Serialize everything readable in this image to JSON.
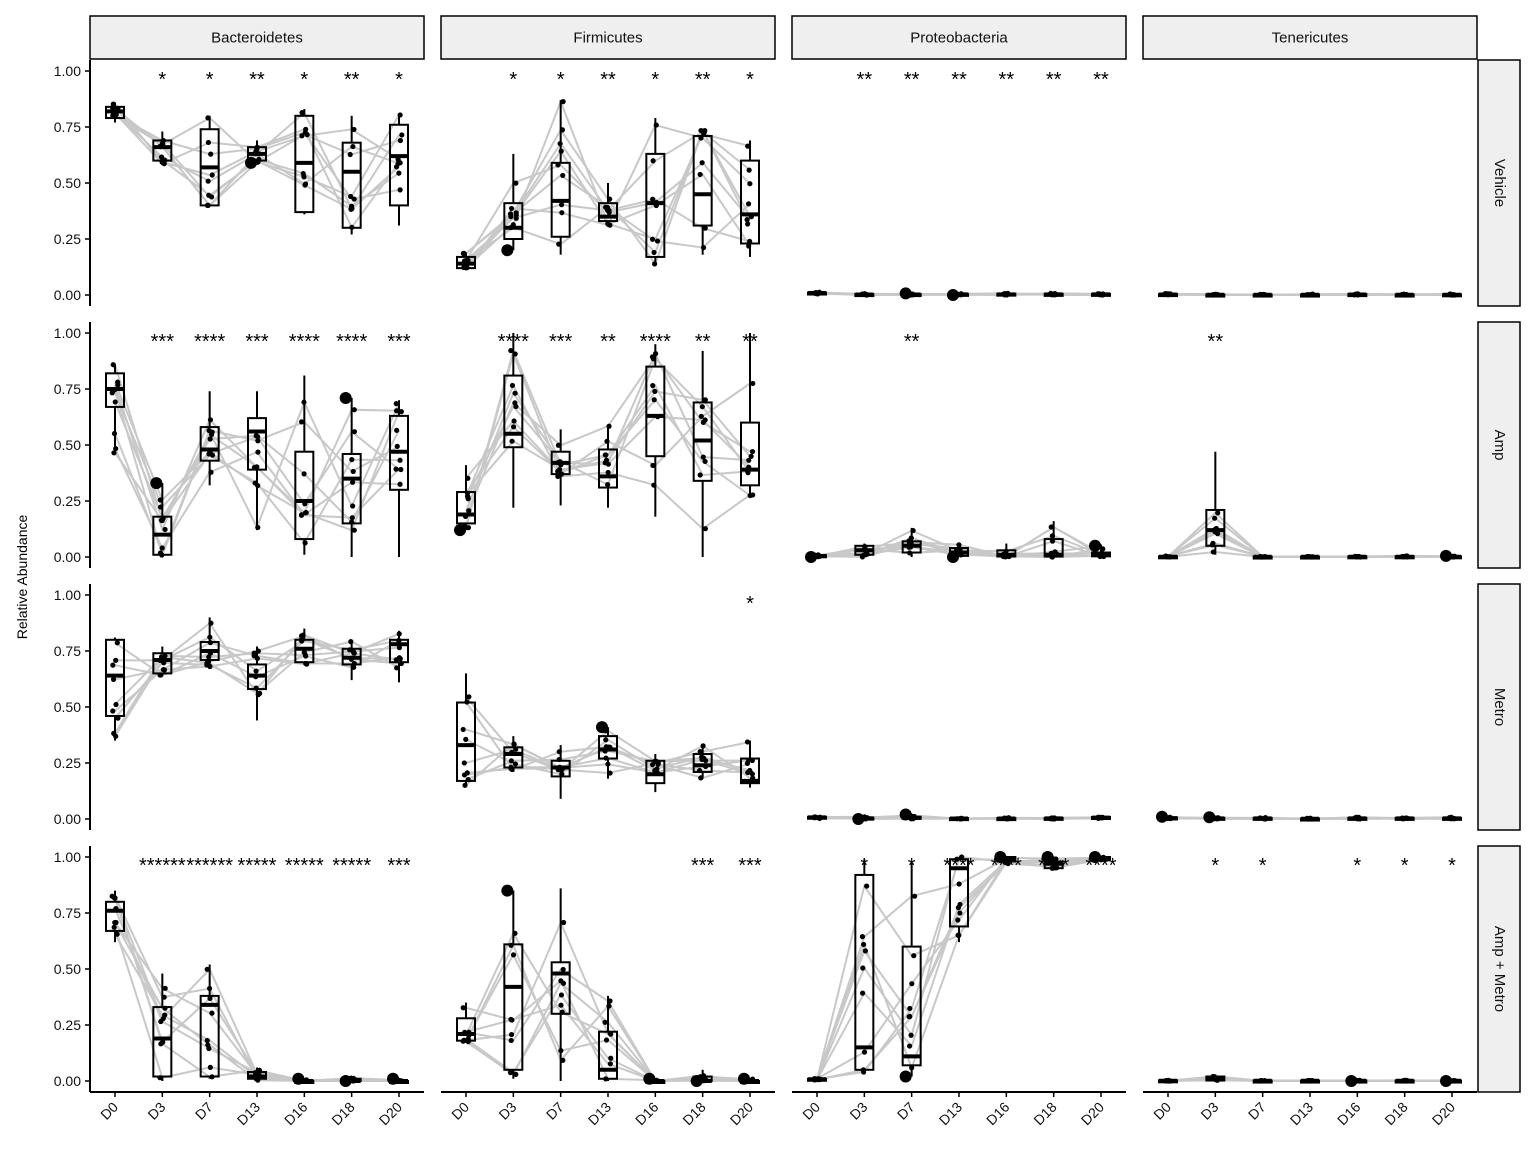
{
  "chart_data": {
    "type": "box",
    "y_label": "Relative Abundance",
    "x_categories": [
      "D0",
      "D3",
      "D7",
      "D13",
      "D16",
      "D18",
      "D20"
    ],
    "y_ticks": [
      "0.00",
      "0.25",
      "0.50",
      "0.75",
      "1.00"
    ],
    "ylim": [
      0,
      1
    ],
    "column_facets": [
      "Bacteroidetes",
      "Firmicutes",
      "Proteobacteria",
      "Tenericutes"
    ],
    "row_facets": [
      "Vehicle",
      "Amp",
      "Metro",
      "Amp + Metro"
    ],
    "colors": {
      "box": "#000000",
      "lines": "#c8c8c8",
      "points": "#000000",
      "strip": "#efefef"
    },
    "panels": [
      {
        "row": "Vehicle",
        "col": "Bacteroidetes",
        "boxes": [
          [
            0.77,
            0.79,
            0.82,
            0.84,
            0.86
          ],
          [
            0.58,
            0.6,
            0.66,
            0.69,
            0.73
          ],
          [
            0.4,
            0.4,
            0.57,
            0.74,
            0.8
          ],
          [
            0.59,
            0.6,
            0.63,
            0.66,
            0.69
          ],
          [
            0.36,
            0.37,
            0.59,
            0.8,
            0.83
          ],
          [
            0.27,
            0.3,
            0.55,
            0.68,
            0.8
          ],
          [
            0.31,
            0.4,
            0.62,
            0.76,
            0.81
          ]
        ],
        "stars": [
          "",
          "*",
          "*",
          "**",
          "*",
          "**",
          "*"
        ]
      },
      {
        "row": "Vehicle",
        "col": "Firmicutes",
        "boxes": [
          [
            0.11,
            0.12,
            0.14,
            0.17,
            0.19
          ],
          [
            0.2,
            0.25,
            0.3,
            0.41,
            0.63
          ],
          [
            0.18,
            0.26,
            0.42,
            0.59,
            0.87
          ],
          [
            0.31,
            0.33,
            0.35,
            0.41,
            0.5
          ],
          [
            0.13,
            0.17,
            0.41,
            0.63,
            0.79
          ],
          [
            0.18,
            0.31,
            0.45,
            0.71,
            0.74
          ],
          [
            0.17,
            0.23,
            0.36,
            0.6,
            0.69
          ]
        ],
        "stars": [
          "",
          "*",
          "*",
          "**",
          "*",
          "**",
          "*"
        ]
      },
      {
        "row": "Vehicle",
        "col": "Proteobacteria",
        "boxes": [
          [
            0.005,
            0.007,
            0.009,
            0.011,
            0.014
          ],
          [
            0,
            0,
            0.002,
            0.004,
            0.006
          ],
          [
            0,
            0,
            0.002,
            0.004,
            0.007
          ],
          [
            0,
            0.001,
            0.003,
            0.005,
            0.008
          ],
          [
            0,
            0.001,
            0.003,
            0.006,
            0.009
          ],
          [
            0,
            0.001,
            0.003,
            0.005,
            0.008
          ],
          [
            0,
            0.001,
            0.003,
            0.005,
            0.008
          ]
        ],
        "stars": [
          "",
          "**",
          "**",
          "**",
          "**",
          "**",
          "**"
        ]
      },
      {
        "row": "Vehicle",
        "col": "Tenericutes",
        "boxes": [
          [
            0,
            0.001,
            0.002,
            0.004,
            0.006
          ],
          [
            0,
            0,
            0.001,
            0.002,
            0.004
          ],
          [
            0,
            0,
            0.001,
            0.002,
            0.004
          ],
          [
            0,
            0,
            0.001,
            0.002,
            0.004
          ],
          [
            0,
            0.001,
            0.002,
            0.004,
            0.006
          ],
          [
            0,
            0,
            0.001,
            0.002,
            0.004
          ],
          [
            0,
            0,
            0.001,
            0.003,
            0.005
          ]
        ],
        "stars": [
          "",
          "",
          "",
          "",
          "",
          "",
          ""
        ]
      },
      {
        "row": "Amp",
        "col": "Bacteroidetes",
        "boxes": [
          [
            0.46,
            0.67,
            0.75,
            0.82,
            0.86
          ],
          [
            0.0,
            0.01,
            0.1,
            0.18,
            0.33
          ],
          [
            0.32,
            0.43,
            0.48,
            0.58,
            0.74
          ],
          [
            0.12,
            0.39,
            0.56,
            0.62,
            0.74
          ],
          [
            0.01,
            0.08,
            0.25,
            0.47,
            0.81
          ],
          [
            0.0,
            0.15,
            0.35,
            0.46,
            0.71
          ],
          [
            0.0,
            0.3,
            0.47,
            0.63,
            0.7
          ]
        ],
        "stars": [
          "",
          "***",
          "****",
          "***",
          "****",
          "****",
          "***"
        ]
      },
      {
        "row": "Amp",
        "col": "Firmicutes",
        "boxes": [
          [
            0.12,
            0.15,
            0.19,
            0.29,
            0.41
          ],
          [
            0.22,
            0.49,
            0.55,
            0.81,
            1.0
          ],
          [
            0.23,
            0.37,
            0.42,
            0.47,
            0.57
          ],
          [
            0.22,
            0.31,
            0.36,
            0.48,
            0.59
          ],
          [
            0.18,
            0.45,
            0.63,
            0.85,
            0.95
          ],
          [
            0.0,
            0.34,
            0.52,
            0.69,
            0.92
          ],
          [
            0.27,
            0.32,
            0.39,
            0.6,
            1.0
          ]
        ],
        "stars": [
          "",
          "****",
          "***",
          "**",
          "****",
          "**",
          "**"
        ]
      },
      {
        "row": "Amp",
        "col": "Proteobacteria",
        "boxes": [
          [
            0,
            0.002,
            0.004,
            0.008,
            0.01
          ],
          [
            0,
            0.01,
            0.03,
            0.05,
            0.06
          ],
          [
            0,
            0.02,
            0.05,
            0.07,
            0.13
          ],
          [
            0,
            0.005,
            0.02,
            0.04,
            0.06
          ],
          [
            0,
            0.002,
            0.01,
            0.03,
            0.06
          ],
          [
            0,
            0.002,
            0.01,
            0.08,
            0.16
          ],
          [
            0,
            0.003,
            0.01,
            0.02,
            0.05
          ]
        ],
        "stars": [
          "",
          "",
          "**",
          "",
          "",
          "",
          ""
        ]
      },
      {
        "row": "Amp",
        "col": "Tenericutes",
        "boxes": [
          [
            0,
            0,
            0.001,
            0.003,
            0.005
          ],
          [
            0.01,
            0.05,
            0.12,
            0.21,
            0.47
          ],
          [
            0,
            0,
            0.001,
            0.002,
            0.004
          ],
          [
            0,
            0,
            0.001,
            0.002,
            0.004
          ],
          [
            0,
            0,
            0.001,
            0.003,
            0.005
          ],
          [
            0,
            0,
            0.001,
            0.003,
            0.005
          ],
          [
            0,
            0,
            0.001,
            0.003,
            0.005
          ]
        ],
        "stars": [
          "",
          "**",
          "",
          "",
          "",
          "",
          ""
        ]
      },
      {
        "row": "Metro",
        "col": "Bacteroidetes",
        "boxes": [
          [
            0.35,
            0.46,
            0.64,
            0.8,
            0.81
          ],
          [
            0.64,
            0.65,
            0.71,
            0.74,
            0.77
          ],
          [
            0.67,
            0.71,
            0.75,
            0.79,
            0.9
          ],
          [
            0.44,
            0.58,
            0.64,
            0.69,
            0.77
          ],
          [
            0.69,
            0.7,
            0.76,
            0.8,
            0.85
          ],
          [
            0.62,
            0.69,
            0.72,
            0.76,
            0.8
          ],
          [
            0.61,
            0.7,
            0.78,
            0.8,
            0.84
          ]
        ],
        "stars": [
          "",
          "",
          "",
          "",
          "",
          "",
          ""
        ]
      },
      {
        "row": "Metro",
        "col": "Firmicutes",
        "boxes": [
          [
            0.15,
            0.17,
            0.33,
            0.52,
            0.65
          ],
          [
            0.21,
            0.23,
            0.29,
            0.32,
            0.37
          ],
          [
            0.09,
            0.19,
            0.23,
            0.26,
            0.33
          ],
          [
            0.18,
            0.27,
            0.31,
            0.37,
            0.41
          ],
          [
            0.12,
            0.16,
            0.2,
            0.26,
            0.29
          ],
          [
            0.18,
            0.21,
            0.24,
            0.29,
            0.33
          ],
          [
            0.14,
            0.16,
            0.17,
            0.27,
            0.35
          ]
        ],
        "stars": [
          "",
          "",
          "",
          "",
          "",
          "",
          "*"
        ]
      },
      {
        "row": "Metro",
        "col": "Proteobacteria",
        "boxes": [
          [
            0.002,
            0.005,
            0.007,
            0.01,
            0.012
          ],
          [
            0,
            0.001,
            0.003,
            0.006,
            0.01
          ],
          [
            0,
            0.002,
            0.005,
            0.01,
            0.02
          ],
          [
            0,
            0.001,
            0.002,
            0.004,
            0.006
          ],
          [
            0,
            0.001,
            0.002,
            0.004,
            0.006
          ],
          [
            0,
            0.001,
            0.003,
            0.005,
            0.007
          ],
          [
            0.002,
            0.004,
            0.006,
            0.009,
            0.011
          ]
        ],
        "stars": [
          "",
          "",
          "",
          "",
          "",
          "",
          ""
        ]
      },
      {
        "row": "Metro",
        "col": "Tenericutes",
        "boxes": [
          [
            0,
            0.002,
            0.004,
            0.007,
            0.01
          ],
          [
            0,
            0.001,
            0.003,
            0.005,
            0.008
          ],
          [
            0,
            0.001,
            0.003,
            0.005,
            0.008
          ],
          [
            0,
            0,
            0.001,
            0.002,
            0.004
          ],
          [
            0,
            0.001,
            0.003,
            0.005,
            0.008
          ],
          [
            0,
            0.001,
            0.003,
            0.005,
            0.008
          ],
          [
            0,
            0.001,
            0.003,
            0.005,
            0.008
          ]
        ],
        "stars": [
          "",
          "",
          "",
          "",
          "",
          "",
          ""
        ]
      },
      {
        "row": "Amp + Metro",
        "col": "Bacteroidetes",
        "boxes": [
          [
            0.62,
            0.67,
            0.76,
            0.8,
            0.85
          ],
          [
            0.0,
            0.02,
            0.19,
            0.33,
            0.48
          ],
          [
            0.01,
            0.02,
            0.34,
            0.38,
            0.52
          ],
          [
            0.0,
            0.01,
            0.02,
            0.04,
            0.06
          ],
          [
            0.0,
            0.0,
            0.0,
            0.0,
            0.01
          ],
          [
            0.0,
            0.0,
            0.0,
            0.01,
            0.02
          ],
          [
            0.0,
            0.0,
            0.0,
            0.0,
            0.01
          ]
        ],
        "stars": [
          "",
          "******",
          "******",
          "*****",
          "*****",
          "*****",
          "***"
        ]
      },
      {
        "row": "Amp + Metro",
        "col": "Firmicutes",
        "boxes": [
          [
            0.17,
            0.18,
            0.21,
            0.28,
            0.35
          ],
          [
            0.01,
            0.05,
            0.42,
            0.61,
            0.85
          ],
          [
            0.0,
            0.3,
            0.48,
            0.53,
            0.86
          ],
          [
            0.0,
            0.01,
            0.05,
            0.22,
            0.38
          ],
          [
            0.0,
            0.0,
            0.0,
            0.0,
            0.01
          ],
          [
            0.0,
            0.0,
            0.0,
            0.02,
            0.05
          ],
          [
            0.0,
            0.0,
            0.0,
            0.0,
            0.01
          ]
        ],
        "stars": [
          "",
          "",
          "",
          "",
          "",
          "***",
          "***"
        ]
      },
      {
        "row": "Amp + Metro",
        "col": "Proteobacteria",
        "boxes": [
          [
            0.004,
            0.006,
            0.008,
            0.01,
            0.012
          ],
          [
            0.03,
            0.05,
            0.15,
            0.92,
            0.99
          ],
          [
            0.02,
            0.07,
            0.11,
            0.6,
            0.98
          ],
          [
            0.62,
            0.69,
            0.95,
            0.99,
            1.0
          ],
          [
            0.97,
            0.98,
            0.99,
            1.0,
            1.0
          ],
          [
            0.94,
            0.95,
            0.97,
            0.98,
            1.0
          ],
          [
            0.98,
            0.99,
            0.99,
            1.0,
            1.0
          ]
        ],
        "stars": [
          "",
          "*",
          "*",
          "****",
          "****",
          "****",
          "****"
        ]
      },
      {
        "row": "Amp + Metro",
        "col": "Tenericutes",
        "boxes": [
          [
            0,
            0,
            0.001,
            0.003,
            0.005
          ],
          [
            0,
            0.002,
            0.01,
            0.02,
            0.03
          ],
          [
            0,
            0,
            0.001,
            0.002,
            0.003
          ],
          [
            0,
            0,
            0.001,
            0.002,
            0.003
          ],
          [
            0,
            0,
            0.001,
            0.002,
            0.003
          ],
          [
            0,
            0,
            0.001,
            0.002,
            0.003
          ],
          [
            0,
            0,
            0.001,
            0.002,
            0.003
          ]
        ],
        "stars": [
          "",
          "*",
          "*",
          "",
          "*",
          "*",
          "*"
        ]
      }
    ]
  }
}
